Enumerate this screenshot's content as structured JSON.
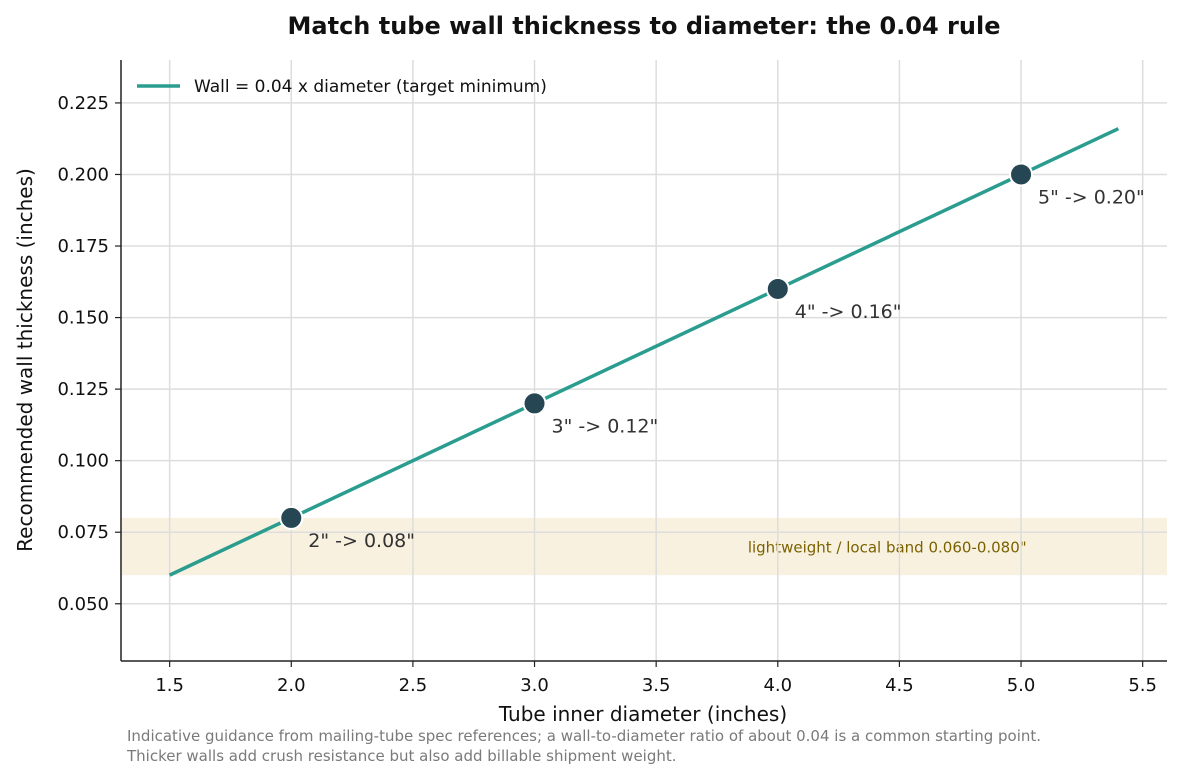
{
  "chart_data": {
    "type": "line",
    "title": "Match tube wall thickness to diameter: the 0.04 rule",
    "xlabel": "Tube inner diameter (inches)",
    "ylabel": "Recommended wall thickness (inches)",
    "xlim": [
      1.3,
      5.6
    ],
    "ylim": [
      0.03,
      0.24
    ],
    "xticks": [
      1.5,
      2.0,
      2.5,
      3.0,
      3.5,
      4.0,
      4.5,
      5.0,
      5.5
    ],
    "xtick_labels": [
      "1.5",
      "2.0",
      "2.5",
      "3.0",
      "3.5",
      "4.0",
      "4.5",
      "5.0",
      "5.5"
    ],
    "yticks": [
      0.05,
      0.075,
      0.1,
      0.125,
      0.15,
      0.175,
      0.2,
      0.225
    ],
    "ytick_labels": [
      "0.050",
      "0.075",
      "0.100",
      "0.125",
      "0.150",
      "0.175",
      "0.200",
      "0.225"
    ],
    "grid": true,
    "legend_position": "top-left",
    "series": [
      {
        "name": "Wall = 0.04 x diameter (target minimum)",
        "color": "#2a9d8f",
        "x": [
          1.5,
          5.4
        ],
        "y": [
          0.06,
          0.216
        ]
      }
    ],
    "points": [
      {
        "x": 2.0,
        "y": 0.08,
        "label": "2\" -> 0.08\""
      },
      {
        "x": 3.0,
        "y": 0.12,
        "label": "3\" -> 0.12\""
      },
      {
        "x": 4.0,
        "y": 0.16,
        "label": "4\" -> 0.16\""
      },
      {
        "x": 5.0,
        "y": 0.2,
        "label": "5\" -> 0.20\""
      }
    ],
    "point_color": "#264653",
    "band": {
      "y0": 0.06,
      "y1": 0.08,
      "label": "lightweight / local band  0.060-0.080\"",
      "fill_color": "#f4e4c1",
      "text_color": "#7a6200"
    }
  },
  "footnote": "Indicative guidance from mailing-tube spec references; a wall-to-diameter ratio of about 0.04 is a common starting point. Thicker walls add crush resistance but also add billable shipment weight."
}
